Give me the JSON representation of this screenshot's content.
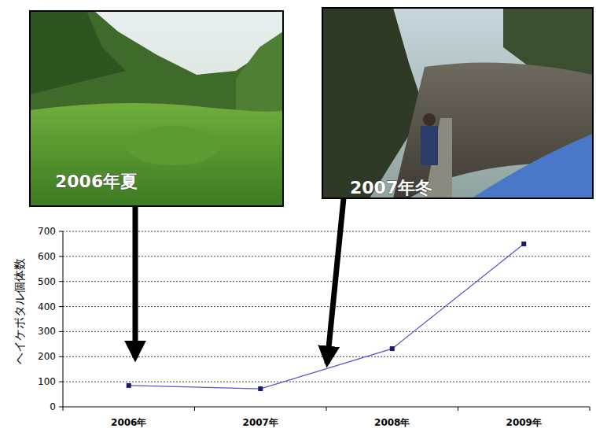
{
  "chart_data": {
    "type": "line",
    "ylabel": "ヘイケボタル個体数",
    "categories": [
      "2006年",
      "2007年",
      "2008年",
      "2009年"
    ],
    "values": [
      85,
      72,
      232,
      650
    ],
    "color": "#5555cc",
    "marker": "square",
    "ylim": [
      0,
      700
    ],
    "yticks": [
      0,
      100,
      200,
      300,
      400,
      500,
      600,
      700
    ],
    "grid": true,
    "annotations": [
      "2006年夏",
      "2007年冬"
    ]
  }
}
